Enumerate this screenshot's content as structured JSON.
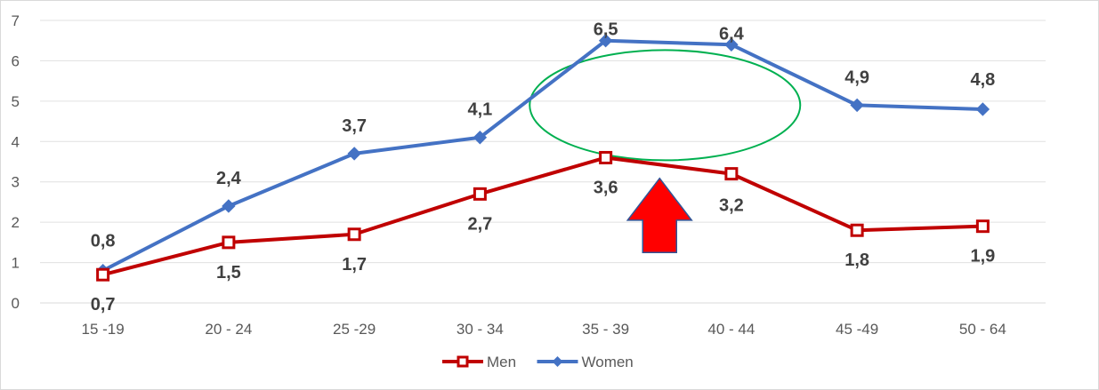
{
  "chart_data": {
    "type": "line",
    "title": "",
    "xlabel": "",
    "ylabel": "",
    "categories": [
      "15 -19",
      "20 - 24",
      "25 -29",
      "30 - 34",
      "35 - 39",
      "40 - 44",
      "45 -49",
      "50 - 64"
    ],
    "ylim": [
      0,
      7
    ],
    "yticks": [
      0,
      1,
      2,
      3,
      4,
      5,
      6,
      7
    ],
    "grid": true,
    "legend": "bottom",
    "series": [
      {
        "name": "Men",
        "color": "#c00000",
        "marker": "square",
        "values": [
          0.7,
          1.5,
          1.7,
          2.7,
          3.6,
          3.2,
          1.8,
          1.9
        ],
        "labels": [
          "0,7",
          "1,5",
          "1,7",
          "2,7",
          "3,6",
          "3,2",
          "1,8",
          "1,9"
        ],
        "label_position": "below"
      },
      {
        "name": "Women",
        "color": "#4472c4",
        "marker": "diamond",
        "values": [
          0.8,
          2.4,
          3.7,
          4.1,
          6.5,
          6.4,
          4.9,
          4.8
        ],
        "labels": [
          "0,8",
          "2,4",
          "3,7",
          "4,1",
          "6,5",
          "6,4",
          "4,9",
          "4,8"
        ],
        "label_position": "above"
      }
    ],
    "annotations": [
      {
        "type": "ellipse",
        "color": "#00b050",
        "description": "highlight around 35-44 gap"
      },
      {
        "type": "arrow-up",
        "color": "#ff0000",
        "outline": "#2f5597"
      }
    ]
  }
}
